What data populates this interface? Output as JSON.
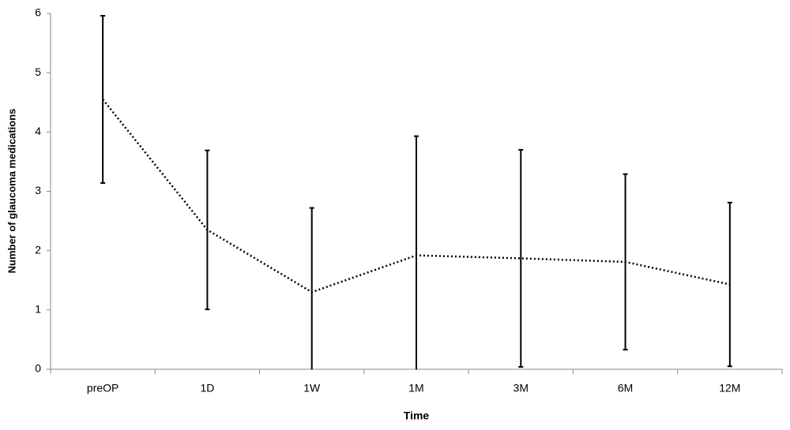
{
  "chart_data": {
    "type": "line",
    "x_label": "Time",
    "y_label": "Number of glaucoma medications",
    "categories": [
      "preOP",
      "1D",
      "1W",
      "1M",
      "3M",
      "6M",
      "12M"
    ],
    "series": [
      {
        "color": "#000000",
        "values": [
          4.55,
          2.35,
          1.3,
          1.92,
          1.87,
          1.81,
          1.43
        ],
        "errors": [
          1.41,
          1.34,
          1.42,
          2.01,
          1.83,
          1.48,
          1.38
        ]
      }
    ],
    "line_style": "dotted",
    "ylim": [
      0,
      6
    ],
    "yticks": [
      0,
      1,
      2,
      3,
      4,
      5,
      6
    ],
    "grid": false
  }
}
